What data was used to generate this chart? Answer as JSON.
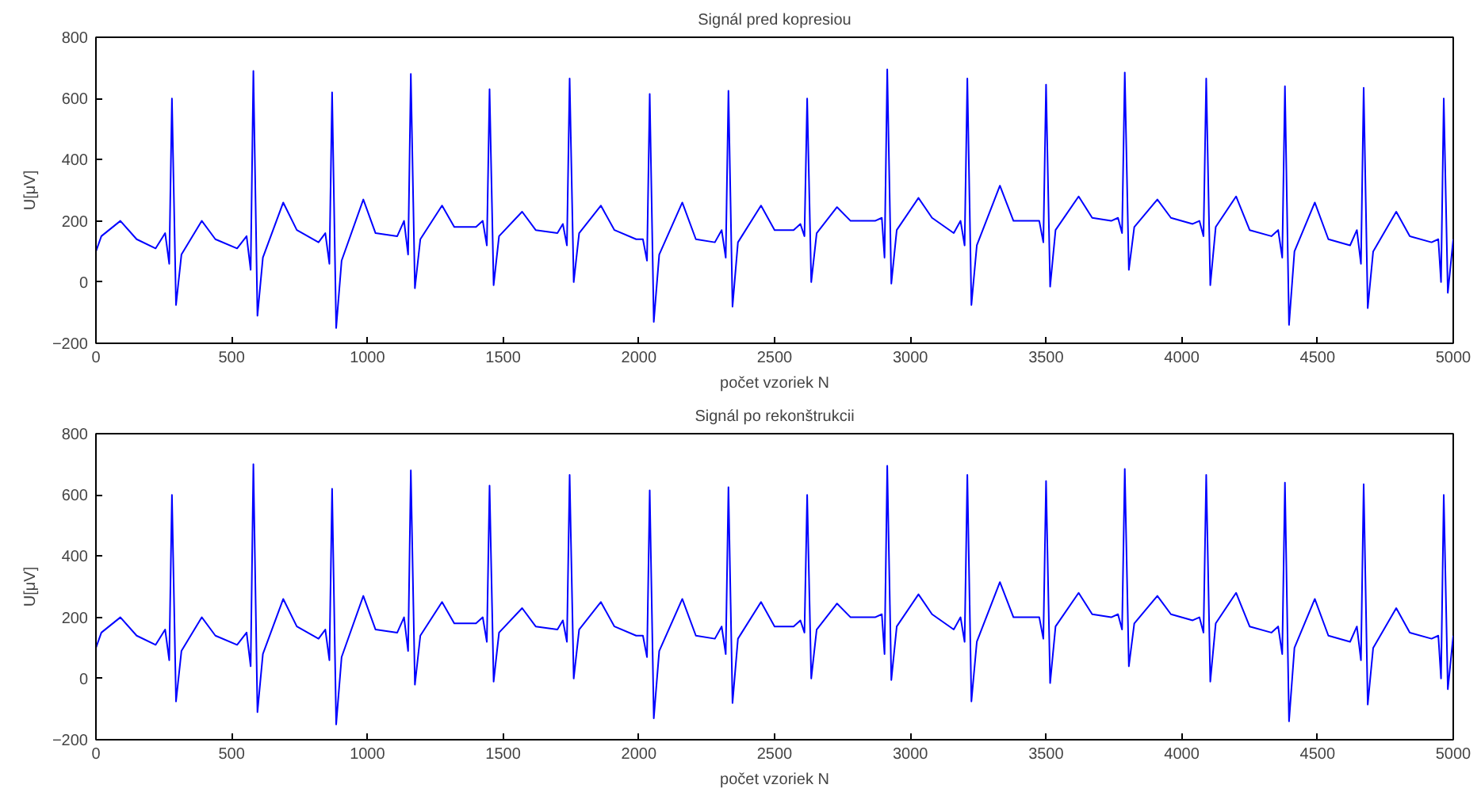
{
  "chart_data": [
    {
      "type": "line",
      "title": "Signál pred kopresiou",
      "xlabel": "počet vzoriek N",
      "ylabel": "U[μV]",
      "xlim": [
        0,
        5000
      ],
      "xticks": [
        0,
        500,
        1000,
        1500,
        2000,
        2500,
        3000,
        3500,
        4000,
        4500,
        5000
      ],
      "ylim": [
        -200,
        800
      ],
      "yticks": [
        -200,
        0,
        200,
        400,
        600,
        800
      ],
      "grid": false,
      "marker": "none",
      "line_style": "solid",
      "x": [
        0,
        20,
        90,
        150,
        220,
        255,
        270,
        280,
        295,
        315,
        390,
        440,
        520,
        555,
        570,
        580,
        595,
        615,
        690,
        740,
        820,
        845,
        860,
        870,
        885,
        905,
        985,
        1030,
        1110,
        1135,
        1150,
        1160,
        1175,
        1195,
        1275,
        1320,
        1400,
        1425,
        1440,
        1450,
        1465,
        1485,
        1570,
        1620,
        1700,
        1720,
        1735,
        1745,
        1760,
        1780,
        1860,
        1910,
        1990,
        2015,
        2030,
        2040,
        2055,
        2075,
        2160,
        2210,
        2280,
        2305,
        2320,
        2330,
        2345,
        2365,
        2450,
        2500,
        2570,
        2595,
        2610,
        2620,
        2635,
        2655,
        2730,
        2780,
        2870,
        2895,
        2905,
        2915,
        2930,
        2950,
        3030,
        3080,
        3160,
        3185,
        3200,
        3210,
        3225,
        3245,
        3330,
        3380,
        3450,
        3475,
        3490,
        3500,
        3515,
        3535,
        3620,
        3670,
        3740,
        3765,
        3780,
        3790,
        3805,
        3825,
        3910,
        3960,
        4040,
        4065,
        4080,
        4090,
        4105,
        4125,
        4200,
        4250,
        4330,
        4355,
        4370,
        4380,
        4395,
        4415,
        4490,
        4540,
        4620,
        4645,
        4660,
        4670,
        4685,
        4705,
        4790,
        4840,
        4920,
        4945,
        4955,
        4965,
        4980,
        5000
      ],
      "series": [
        {
          "color": "#0000ff",
          "values": [
            100,
            150,
            200,
            140,
            110,
            160,
            60,
            600,
            -75,
            90,
            200,
            140,
            110,
            150,
            40,
            690,
            -110,
            80,
            260,
            170,
            130,
            160,
            60,
            620,
            -150,
            70,
            270,
            160,
            150,
            200,
            90,
            680,
            -20,
            140,
            250,
            180,
            180,
            200,
            120,
            630,
            -10,
            150,
            230,
            170,
            160,
            190,
            120,
            665,
            0,
            160,
            250,
            170,
            140,
            140,
            70,
            615,
            -130,
            90,
            260,
            140,
            130,
            170,
            80,
            625,
            -80,
            130,
            250,
            170,
            170,
            190,
            150,
            600,
            0,
            160,
            245,
            200,
            200,
            210,
            80,
            695,
            -5,
            170,
            275,
            210,
            160,
            200,
            120,
            665,
            -75,
            120,
            315,
            200,
            200,
            200,
            130,
            645,
            -15,
            170,
            280,
            210,
            200,
            210,
            160,
            685,
            40,
            180,
            270,
            210,
            190,
            200,
            150,
            665,
            -10,
            180,
            280,
            170,
            150,
            170,
            80,
            640,
            -140,
            100,
            260,
            140,
            120,
            170,
            60,
            635,
            -85,
            100,
            230,
            150,
            130,
            140,
            0,
            600,
            -35,
            140
          ]
        }
      ]
    },
    {
      "type": "line",
      "title": "Signál po rekonštrukcii",
      "xlabel": "počet vzoriek N",
      "ylabel": "U[μV]",
      "xlim": [
        0,
        5000
      ],
      "xticks": [
        0,
        500,
        1000,
        1500,
        2000,
        2500,
        3000,
        3500,
        4000,
        4500,
        5000
      ],
      "ylim": [
        -200,
        800
      ],
      "yticks": [
        -200,
        0,
        200,
        400,
        600,
        800
      ],
      "grid": false,
      "marker": "none",
      "line_style": "solid",
      "x": [
        0,
        20,
        90,
        150,
        220,
        255,
        270,
        280,
        295,
        315,
        390,
        440,
        520,
        555,
        570,
        580,
        595,
        615,
        690,
        740,
        820,
        845,
        860,
        870,
        885,
        905,
        985,
        1030,
        1110,
        1135,
        1150,
        1160,
        1175,
        1195,
        1275,
        1320,
        1400,
        1425,
        1440,
        1450,
        1465,
        1485,
        1570,
        1620,
        1700,
        1720,
        1735,
        1745,
        1760,
        1780,
        1860,
        1910,
        1990,
        2015,
        2030,
        2040,
        2055,
        2075,
        2160,
        2210,
        2280,
        2305,
        2320,
        2330,
        2345,
        2365,
        2450,
        2500,
        2570,
        2595,
        2610,
        2620,
        2635,
        2655,
        2730,
        2780,
        2870,
        2895,
        2905,
        2915,
        2930,
        2950,
        3030,
        3080,
        3160,
        3185,
        3200,
        3210,
        3225,
        3245,
        3330,
        3380,
        3450,
        3475,
        3490,
        3500,
        3515,
        3535,
        3620,
        3670,
        3740,
        3765,
        3780,
        3790,
        3805,
        3825,
        3910,
        3960,
        4040,
        4065,
        4080,
        4090,
        4105,
        4125,
        4200,
        4250,
        4330,
        4355,
        4370,
        4380,
        4395,
        4415,
        4490,
        4540,
        4620,
        4645,
        4660,
        4670,
        4685,
        4705,
        4790,
        4840,
        4920,
        4945,
        4955,
        4965,
        4980,
        5000
      ],
      "series": [
        {
          "color": "#0000ff",
          "values": [
            100,
            150,
            200,
            140,
            110,
            160,
            60,
            600,
            -75,
            90,
            200,
            140,
            110,
            150,
            40,
            700,
            -110,
            80,
            260,
            170,
            130,
            160,
            60,
            620,
            -150,
            70,
            270,
            160,
            150,
            200,
            90,
            680,
            -20,
            140,
            250,
            180,
            180,
            200,
            120,
            630,
            -10,
            150,
            230,
            170,
            160,
            190,
            120,
            665,
            0,
            160,
            250,
            170,
            140,
            140,
            70,
            615,
            -130,
            90,
            260,
            140,
            130,
            170,
            80,
            625,
            -80,
            130,
            250,
            170,
            170,
            190,
            150,
            600,
            0,
            160,
            245,
            200,
            200,
            210,
            80,
            695,
            -5,
            170,
            275,
            210,
            160,
            200,
            120,
            665,
            -75,
            120,
            315,
            200,
            200,
            200,
            130,
            645,
            -15,
            170,
            280,
            210,
            200,
            210,
            160,
            685,
            40,
            180,
            270,
            210,
            190,
            200,
            150,
            665,
            -10,
            180,
            280,
            170,
            150,
            170,
            80,
            640,
            -140,
            100,
            260,
            140,
            120,
            170,
            60,
            635,
            -85,
            100,
            230,
            150,
            130,
            140,
            0,
            600,
            -35,
            140
          ]
        }
      ]
    }
  ]
}
